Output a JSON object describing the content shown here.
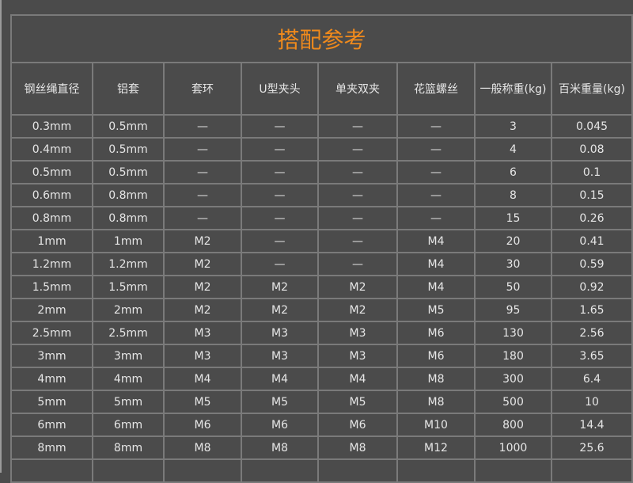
{
  "title": "搭配参考",
  "headers": [
    "钢丝绳直径",
    "铝套",
    "套环",
    "U型夹头",
    "单夹双夹",
    "花篮螺丝",
    "一般称重(kg)",
    "百米重量(kg)"
  ],
  "rows": [
    [
      "0.3mm",
      "0.5mm",
      "—",
      "—",
      "—",
      "—",
      "3",
      "0.045"
    ],
    [
      "0.4mm",
      "0.5mm",
      "—",
      "—",
      "—",
      "—",
      "4",
      "0.08"
    ],
    [
      "0.5mm",
      "0.5mm",
      "—",
      "—",
      "—",
      "—",
      "6",
      "0.1"
    ],
    [
      "0.6mm",
      "0.8mm",
      "—",
      "—",
      "—",
      "—",
      "8",
      "0.15"
    ],
    [
      "0.8mm",
      "0.8mm",
      "—",
      "—",
      "—",
      "—",
      "15",
      "0.26"
    ],
    [
      "1mm",
      "1mm",
      "M2",
      "—",
      "—",
      "M4",
      "20",
      "0.41"
    ],
    [
      "1.2mm",
      "1.2mm",
      "M2",
      "—",
      "—",
      "M4",
      "30",
      "0.59"
    ],
    [
      "1.5mm",
      "1.5mm",
      "M2",
      "M2",
      "M2",
      "M4",
      "50",
      "0.92"
    ],
    [
      "2mm",
      "2mm",
      "M2",
      "M2",
      "M2",
      "M5",
      "95",
      "1.65"
    ],
    [
      "2.5mm",
      "2.5mm",
      "M3",
      "M3",
      "M3",
      "M6",
      "130",
      "2.56"
    ],
    [
      "3mm",
      "3mm",
      "M3",
      "M3",
      "M3",
      "M6",
      "180",
      "3.65"
    ],
    [
      "4mm",
      "4mm",
      "M4",
      "M4",
      "M4",
      "M8",
      "300",
      "6.4"
    ],
    [
      "5mm",
      "5mm",
      "M5",
      "M5",
      "M5",
      "M8",
      "500",
      "10"
    ],
    [
      "6mm",
      "6mm",
      "M6",
      "M6",
      "M6",
      "M10",
      "800",
      "14.4"
    ],
    [
      "8mm",
      "8mm",
      "M8",
      "M8",
      "M8",
      "M12",
      "1000",
      "25.6"
    ]
  ]
}
